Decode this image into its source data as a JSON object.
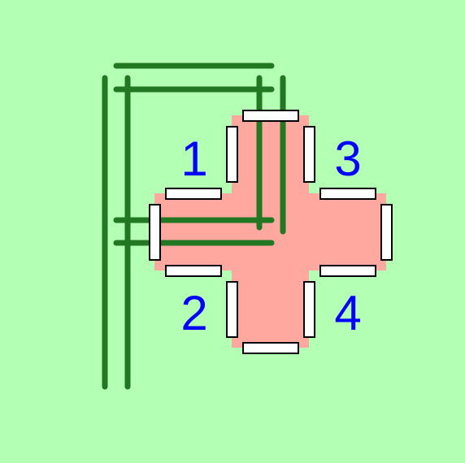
{
  "colors": {
    "background": "#b3ffb3",
    "cross_fill": "#ffa8a0",
    "line": "#227722",
    "bar_fill": "#ffffff",
    "bar_stroke": "#000000",
    "number": "#0000ff"
  },
  "labels": {
    "q1": "1",
    "q2": "2",
    "q3": "3",
    "q4": "4"
  }
}
